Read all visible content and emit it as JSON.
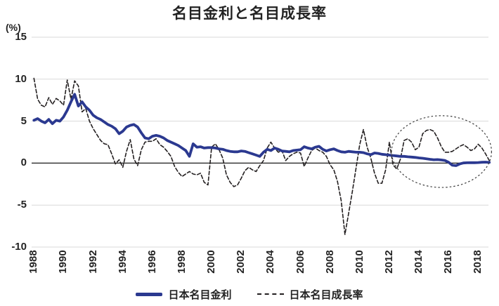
{
  "title": "名目金利と名目成長率",
  "y_axis": {
    "unit_label": "(%)",
    "ticks": [
      15,
      10,
      5,
      0,
      -5,
      -10
    ],
    "min": -10,
    "max": 15
  },
  "x_axis": {
    "tick_years": [
      1988,
      1990,
      1992,
      1994,
      1996,
      1998,
      2000,
      2002,
      2004,
      2006,
      2008,
      2010,
      2012,
      2014,
      2016,
      2018
    ]
  },
  "legend": [
    {
      "label": "日本名目金利",
      "style": "solid",
      "color": "#2b3990"
    },
    {
      "label": "日本名目成長率",
      "style": "dashed",
      "color": "#231f20"
    }
  ],
  "colors": {
    "interest_line": "#2b3990",
    "growth_line": "#231f20",
    "gridline": "#d9d9d9",
    "zero_axis": "#1a1a1a",
    "text": "#232323",
    "ellipse": "#3c3c3c",
    "background": "#ffffff"
  },
  "annotation": {
    "shape": "ellipse",
    "meaning": "highlight of 2013-2018 period where nominal growth exceeds nominal interest rate",
    "x_year_range": [
      2012.15,
      2018.9
    ],
    "y_value_range": [
      -2.9,
      5.65
    ]
  },
  "chart_data": {
    "type": "line",
    "title": "名目金利と名目成長率",
    "xlabel": "",
    "ylabel": "(%)",
    "ylim": [
      -10,
      15
    ],
    "xlim": [
      1988,
      2019
    ],
    "grid": "horizontal",
    "legend_position": "bottom",
    "x_start": 1988,
    "x_step": 0.25,
    "x_frequency": "quarterly",
    "series": [
      {
        "name": "日本名目金利",
        "color": "#2b3990",
        "width": 3.8,
        "dash": null,
        "values": [
          5.1,
          5.3,
          5.0,
          4.8,
          5.2,
          4.7,
          5.1,
          5.0,
          5.5,
          6.3,
          7.3,
          8.2,
          6.8,
          7.3,
          6.7,
          6.3,
          5.7,
          5.4,
          5.2,
          4.9,
          4.6,
          4.4,
          4.1,
          3.5,
          3.8,
          4.3,
          4.5,
          4.6,
          4.3,
          3.6,
          3.0,
          2.9,
          3.2,
          3.3,
          3.2,
          3.0,
          2.7,
          2.5,
          2.3,
          2.1,
          1.8,
          1.5,
          0.8,
          2.3,
          1.9,
          1.95,
          1.8,
          1.85,
          1.85,
          1.8,
          1.7,
          1.65,
          1.5,
          1.4,
          1.35,
          1.35,
          1.45,
          1.4,
          1.25,
          1.1,
          0.95,
          0.8,
          1.3,
          1.65,
          1.5,
          1.8,
          1.65,
          1.45,
          1.4,
          1.35,
          1.5,
          1.55,
          1.6,
          1.95,
          1.8,
          1.7,
          1.9,
          2.0,
          1.65,
          1.45,
          1.6,
          1.7,
          1.5,
          1.35,
          1.3,
          1.4,
          1.35,
          1.3,
          1.3,
          1.25,
          1.1,
          1.0,
          1.2,
          1.15,
          1.05,
          1.0,
          0.95,
          0.9,
          0.85,
          0.8,
          0.8,
          0.75,
          0.72,
          0.68,
          0.62,
          0.58,
          0.52,
          0.45,
          0.4,
          0.42,
          0.38,
          0.32,
          0.1,
          -0.25,
          -0.3,
          -0.1,
          0.02,
          0.04,
          0.05,
          0.05,
          0.07,
          0.1,
          0.12,
          0.08
        ]
      },
      {
        "name": "日本名目成長率",
        "color": "#231f20",
        "width": 1.6,
        "dash": "5,3",
        "values": [
          10.1,
          7.6,
          6.9,
          6.7,
          7.8,
          7.0,
          7.7,
          7.4,
          6.9,
          9.9,
          7.6,
          9.8,
          9.2,
          6.1,
          6.5,
          5.0,
          4.1,
          3.4,
          2.7,
          2.3,
          2.2,
          1.1,
          -0.1,
          0.4,
          -0.5,
          1.4,
          2.8,
          0.5,
          -0.3,
          1.6,
          2.5,
          2.6,
          2.6,
          2.9,
          2.2,
          1.9,
          1.4,
          0.8,
          -0.4,
          -1.1,
          -1.6,
          -1.3,
          -1.0,
          -1.3,
          -1.4,
          -1.2,
          -2.3,
          -2.6,
          1.9,
          2.3,
          1.6,
          0.6,
          -1.4,
          -2.3,
          -2.8,
          -2.6,
          -1.8,
          -0.9,
          -0.5,
          -0.8,
          -1.0,
          -0.3,
          0.3,
          1.8,
          2.5,
          1.8,
          1.3,
          1.5,
          0.3,
          0.8,
          1.1,
          1.3,
          1.2,
          -0.4,
          0.6,
          1.5,
          1.8,
          1.5,
          1.3,
          0.8,
          -0.2,
          -0.8,
          -2.2,
          -4.5,
          -8.5,
          -6.0,
          -3.4,
          -0.6,
          2.2,
          4.0,
          1.9,
          0.6,
          -1.2,
          -2.4,
          -2.4,
          -0.8,
          2.5,
          -0.2,
          -0.7,
          0.5,
          2.7,
          2.9,
          2.5,
          1.6,
          1.9,
          3.5,
          3.9,
          4.0,
          3.8,
          3.0,
          2.0,
          1.3,
          1.3,
          1.4,
          1.7,
          2.0,
          2.2,
          1.9,
          1.5,
          1.7,
          2.25,
          1.8,
          1.1,
          0.3
        ]
      }
    ]
  }
}
